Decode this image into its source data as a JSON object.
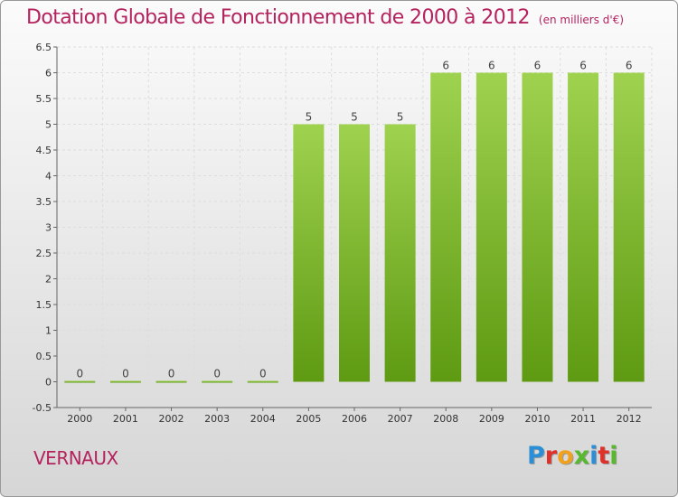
{
  "header": {
    "title": "Dotation Globale de Fonctionnement de 2000 à 2012",
    "unit": "(en milliers d'€)"
  },
  "footer": {
    "commune": "VERNAUX",
    "logo_letters": [
      {
        "char": "P",
        "color": "#2a8fd6"
      },
      {
        "char": "r",
        "color": "#e0302a"
      },
      {
        "char": "o",
        "color": "#f2a11f"
      },
      {
        "char": "x",
        "color": "#58b82e"
      },
      {
        "char": "i",
        "color": "#2a8fd6"
      },
      {
        "char": "t",
        "color": "#e0302a"
      },
      {
        "char": "i",
        "color": "#58b82e"
      }
    ]
  },
  "chart_data": {
    "type": "bar",
    "title": "Dotation Globale de Fonctionnement de 2000 à 2012",
    "subtitle": "(en milliers d'€)",
    "categories": [
      "2000",
      "2001",
      "2002",
      "2003",
      "2004",
      "2005",
      "2006",
      "2007",
      "2008",
      "2009",
      "2010",
      "2011",
      "2012"
    ],
    "values": [
      0,
      0,
      0,
      0,
      0,
      5,
      5,
      5,
      6,
      6,
      6,
      6,
      6
    ],
    "data_labels": [
      "0",
      "0",
      "0",
      "0",
      "0",
      "5",
      "5",
      "5",
      "6",
      "6",
      "6",
      "6",
      "6"
    ],
    "y_ticks": [
      "-0.5",
      "0",
      "0.5",
      "1",
      "1.5",
      "2",
      "2.5",
      "3",
      "3.5",
      "4",
      "4.5",
      "5",
      "5.5",
      "6",
      "6.5"
    ],
    "ylim": [
      -0.5,
      6.5
    ],
    "xlabel": "",
    "ylabel": "",
    "grid": true,
    "bar_color_top": "#9fd24f",
    "bar_color_bottom": "#5e9a12"
  }
}
